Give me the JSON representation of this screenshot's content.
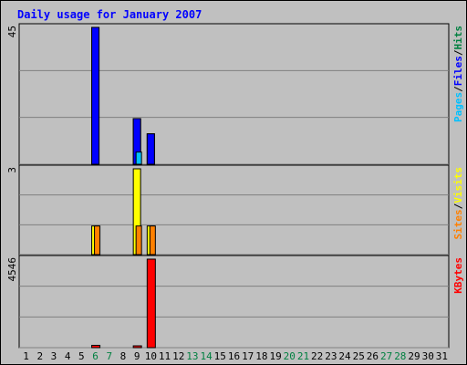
{
  "chart_data": {
    "type": "bar",
    "title": "Daily usage for January 2007",
    "days": [
      "1",
      "2",
      "3",
      "4",
      "5",
      "6",
      "7",
      "8",
      "9",
      "10",
      "11",
      "12",
      "13",
      "14",
      "15",
      "16",
      "17",
      "18",
      "19",
      "20",
      "21",
      "22",
      "23",
      "24",
      "25",
      "26",
      "27",
      "28",
      "29",
      "30",
      "31"
    ],
    "weekend_days": [
      "6",
      "7",
      "13",
      "14",
      "20",
      "21",
      "27",
      "28"
    ],
    "panels": [
      {
        "id": "hits-files-pages",
        "max_label": "45",
        "ylim": [
          0,
          45
        ],
        "legend": [
          {
            "label": "Pages",
            "color": "#00c0ff"
          },
          {
            "label": "Files",
            "color": "#0000ff"
          },
          {
            "label": "Hits",
            "color": "#008040"
          }
        ],
        "separator": "/",
        "series": [
          {
            "name": "Hits",
            "color": "#008040",
            "values": [
              0,
              0,
              0,
              0,
              0,
              45,
              0,
              0,
              15,
              10,
              0,
              0,
              0,
              0,
              0,
              0,
              0,
              0,
              0,
              0,
              0,
              0,
              0,
              0,
              0,
              0,
              0,
              0,
              0,
              0,
              0
            ]
          },
          {
            "name": "Files",
            "color": "#0000ff",
            "values": [
              0,
              0,
              0,
              0,
              0,
              45,
              0,
              0,
              15,
              10,
              0,
              0,
              0,
              0,
              0,
              0,
              0,
              0,
              0,
              0,
              0,
              0,
              0,
              0,
              0,
              0,
              0,
              0,
              0,
              0,
              0
            ]
          },
          {
            "name": "Pages",
            "color": "#00c0ff",
            "values": [
              0,
              0,
              0,
              0,
              0,
              0,
              0,
              0,
              4,
              0,
              0,
              0,
              0,
              0,
              0,
              0,
              0,
              0,
              0,
              0,
              0,
              0,
              0,
              0,
              0,
              0,
              0,
              0,
              0,
              0,
              0
            ]
          }
        ]
      },
      {
        "id": "visits-sites",
        "max_label": "3",
        "ylim": [
          0,
          3
        ],
        "legend": [
          {
            "label": "Sites",
            "color": "#ff8000"
          },
          {
            "label": "Visits",
            "color": "#ffff00"
          }
        ],
        "separator": "/",
        "series": [
          {
            "name": "Visits",
            "color": "#ffff00",
            "values": [
              0,
              0,
              0,
              0,
              0,
              1,
              0,
              0,
              3,
              1,
              0,
              0,
              0,
              0,
              0,
              0,
              0,
              0,
              0,
              0,
              0,
              0,
              0,
              0,
              0,
              0,
              0,
              0,
              0,
              0,
              0
            ]
          },
          {
            "name": "Sites",
            "color": "#ff8000",
            "values": [
              0,
              0,
              0,
              0,
              0,
              1,
              0,
              0,
              1,
              1,
              0,
              0,
              0,
              0,
              0,
              0,
              0,
              0,
              0,
              0,
              0,
              0,
              0,
              0,
              0,
              0,
              0,
              0,
              0,
              0,
              0
            ]
          }
        ]
      },
      {
        "id": "kbytes",
        "max_label": "4546",
        "ylim": [
          0,
          4546
        ],
        "legend": [
          {
            "label": "KBytes",
            "color": "#ff0000"
          }
        ],
        "separator": "",
        "series": [
          {
            "name": "KBytes",
            "color": "#ff0000",
            "values": [
              0,
              0,
              0,
              0,
              0,
              120,
              0,
              0,
              90,
              4546,
              0,
              0,
              0,
              0,
              0,
              0,
              0,
              0,
              0,
              0,
              0,
              0,
              0,
              0,
              0,
              0,
              0,
              0,
              0,
              0,
              0
            ]
          }
        ]
      }
    ],
    "grid": true,
    "colors": {
      "background": "#c0c0c0",
      "title": "#0000ff",
      "day_label": "#000000",
      "weekend_label": "#008040"
    }
  }
}
